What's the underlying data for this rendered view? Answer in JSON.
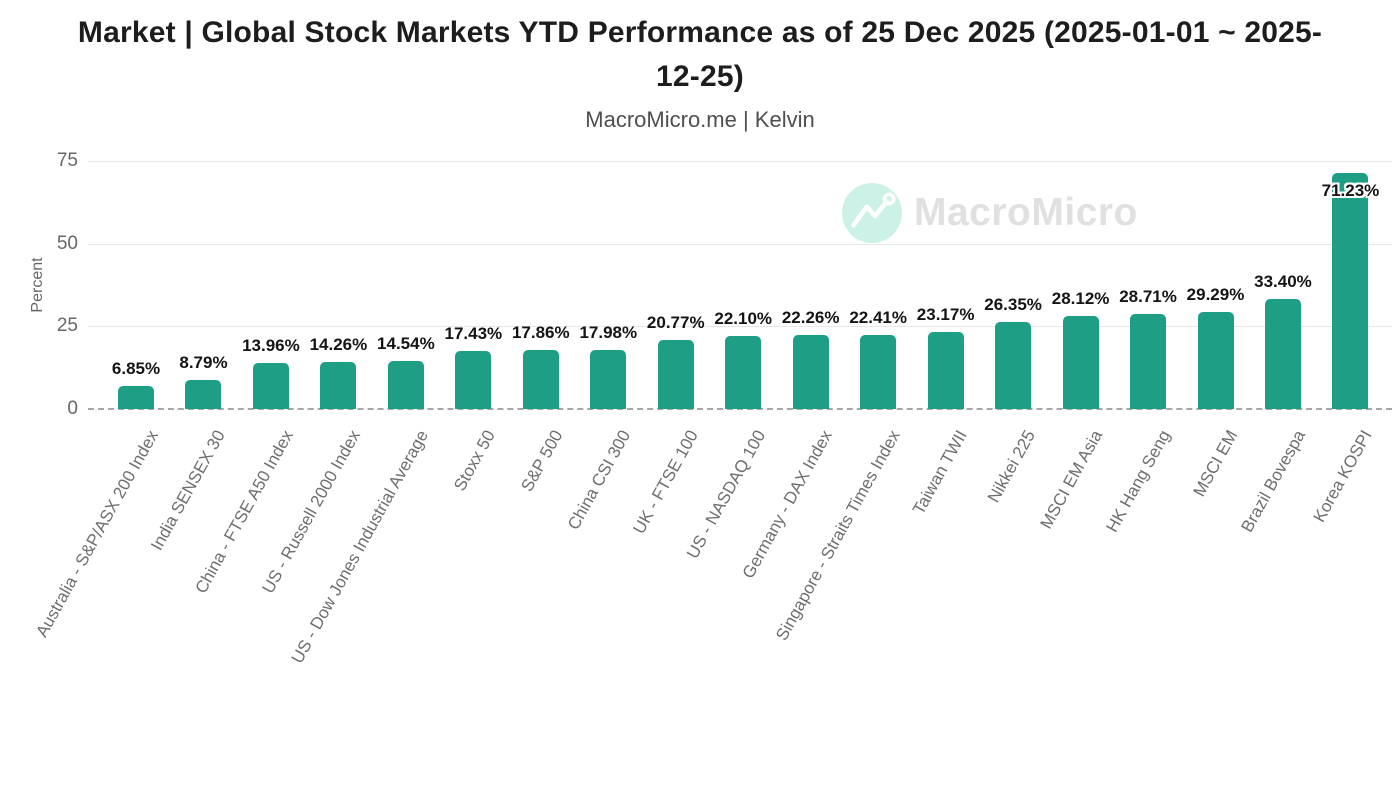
{
  "chart_data": {
    "type": "bar",
    "title": "Market | Global Stock Markets YTD Performance as of 25 Dec 2025 (2025-01-01 ~ 2025-12-25)",
    "subtitle": "MacroMicro.me | Kelvin",
    "xlabel": "",
    "ylabel": "Percent",
    "ylim": [
      0,
      75
    ],
    "yticks": [
      0,
      25,
      50,
      75
    ],
    "grid": "horizontal solid gridlines at 25/50/75, dashed baseline at 0",
    "legend": "none",
    "bar_color": "#1E9E84",
    "categories": [
      "Australia - S&P/ASX 200 Index",
      "India SENSEX 30",
      "China - FTSE A50 Index",
      "US - Russell 2000 Index",
      "US - Dow Jones Industrial Average",
      "Stoxx 50",
      "S&P 500",
      "China CSI 300",
      "UK - FTSE 100",
      "US - NASDAQ 100",
      "Germany - DAX Index",
      "Singapore - Straits Times Index",
      "Taiwan TWII",
      "Nikkei 225",
      "MSCI EM Asia",
      "HK Hang Seng",
      "MSCI EM",
      "Brazil Bovespa",
      "Korea KOSPI"
    ],
    "values": [
      6.85,
      8.79,
      13.96,
      14.26,
      14.54,
      17.43,
      17.86,
      17.98,
      20.77,
      22.1,
      22.26,
      22.41,
      23.17,
      26.35,
      28.12,
      28.71,
      29.29,
      33.4,
      71.23
    ],
    "value_labels": [
      "6.85%",
      "8.79%",
      "13.96%",
      "14.26%",
      "14.54%",
      "17.43%",
      "17.86%",
      "17.98%",
      "20.77%",
      "22.10%",
      "22.26%",
      "22.41%",
      "23.17%",
      "26.35%",
      "28.12%",
      "28.71%",
      "29.29%",
      "33.40%",
      "71.23%"
    ]
  },
  "watermark": {
    "brand": "MacroMicro",
    "icon": "trendline-logo-icon",
    "circle_color": "#CCF2E7",
    "text_color": "#E0E0E0"
  }
}
